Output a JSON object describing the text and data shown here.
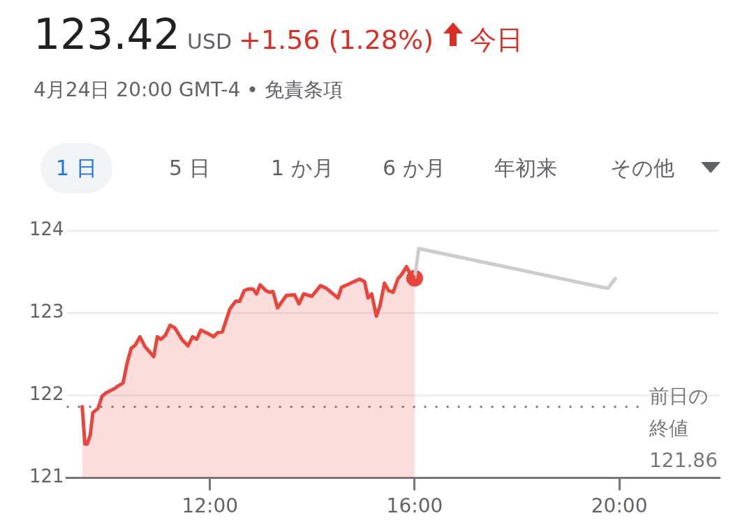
{
  "chart_data": {
    "type": "line",
    "title": "123.42",
    "subtitle": "4月24日 20:00 GMT-4 • 免責条項",
    "annotations": [
      "USD",
      "+1.56 (1.28%)",
      "今日",
      "1 日",
      "5 日",
      "1 か月",
      "6 か月",
      "年初来",
      "その他"
    ],
    "xlim": [
      9.2,
      21.95
    ],
    "xticks": [
      {
        "value": 12,
        "label": "12:00"
      },
      {
        "value": 16,
        "label": "16:00"
      },
      {
        "value": 20,
        "label": "20:00"
      }
    ],
    "ylim": [
      121,
      124
    ],
    "yticks": [
      121,
      122,
      123,
      124
    ],
    "grid": "y",
    "legend": false,
    "marker": "none",
    "line_style": "solid",
    "ref_lines": [
      {
        "axis": "y",
        "value": 121.86,
        "label": "前日の終値 121.86",
        "color": "#777777",
        "line_style": "dotted"
      }
    ],
    "series": [
      {
        "type": "area",
        "color": "#e8453c",
        "x": [
          9.5,
          9.555,
          9.6,
          9.66,
          9.71,
          9.81,
          9.89,
          9.97,
          10.06,
          10.13,
          10.22,
          10.3,
          10.38,
          10.46,
          10.54,
          10.63,
          10.73,
          10.9,
          10.97,
          11.04,
          11.13,
          11.22,
          11.31,
          11.46,
          11.57,
          11.66,
          11.74,
          11.82,
          11.99,
          12.07,
          12.15,
          12.24,
          12.39,
          12.5,
          12.58,
          12.67,
          12.75,
          12.84,
          12.91,
          12.98,
          13.09,
          13.16,
          13.23,
          13.32,
          13.49,
          13.65,
          13.74,
          13.83,
          13.99,
          14.16,
          14.27,
          14.5,
          14.57,
          14.68,
          14.92,
          15.02,
          15.09,
          15.16,
          15.25,
          15.32,
          15.41,
          15.49,
          15.58,
          15.67,
          15.75,
          15.84,
          15.9,
          16.0
        ],
        "values": [
          121.88,
          121.41,
          121.41,
          121.52,
          121.79,
          121.84,
          121.99,
          122.03,
          122.06,
          122.08,
          122.12,
          122.15,
          122.39,
          122.57,
          122.61,
          122.71,
          122.59,
          122.47,
          122.71,
          122.68,
          122.73,
          122.85,
          122.82,
          122.67,
          122.6,
          122.71,
          122.68,
          122.79,
          122.74,
          122.71,
          122.76,
          122.77,
          123.05,
          123.14,
          123.14,
          123.27,
          123.29,
          123.29,
          123.23,
          123.34,
          123.27,
          123.25,
          123.26,
          123.06,
          123.21,
          123.22,
          123.11,
          123.23,
          123.2,
          123.33,
          123.3,
          123.18,
          123.31,
          123.34,
          123.41,
          123.38,
          123.18,
          123.23,
          122.96,
          123.08,
          123.36,
          123.27,
          123.25,
          123.41,
          123.47,
          123.56,
          123.49,
          123.42
        ]
      },
      {
        "type": "line",
        "color": "#cccccc",
        "x": [
          16.0,
          16.08,
          19.67,
          19.78,
          19.94
        ],
        "values": [
          123.42,
          123.78,
          123.31,
          123.3,
          123.43
        ]
      },
      {
        "type": "scatter",
        "color": "#e8453c",
        "marker": "circle",
        "x": [
          16.0
        ],
        "values": [
          123.42
        ]
      }
    ]
  }
}
